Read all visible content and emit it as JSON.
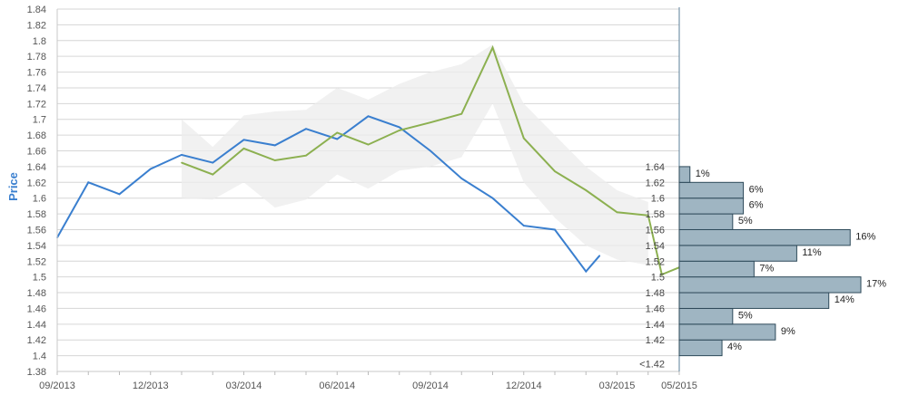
{
  "chart_data": {
    "type": "line",
    "ylabel": "Price",
    "ylim": [
      1.38,
      1.84
    ],
    "y_ticks": [
      "1.38",
      "1.4",
      "1.42",
      "1.44",
      "1.46",
      "1.48",
      "1.5",
      "1.52",
      "1.54",
      "1.56",
      "1.58",
      "1.6",
      "1.62",
      "1.64",
      "1.66",
      "1.68",
      "1.7",
      "1.72",
      "1.74",
      "1.76",
      "1.78",
      "1.8",
      "1.82",
      "1.84"
    ],
    "x_labels": [
      "09/2013",
      "12/2013",
      "03/2014",
      "06/2014",
      "09/2014",
      "12/2014",
      "03/2015",
      "05/2015"
    ],
    "grid": true,
    "colors": {
      "actual": "#3a7fcf",
      "forecast": "#8cb050",
      "band": "#ececec",
      "hist_bar": "#9fb5c2",
      "hist_edge": "#2e4a5a",
      "ylabel": "#3a7fcf"
    },
    "series": [
      {
        "role": "actual",
        "x": [
          "09/2013",
          "10/2013",
          "11/2013",
          "12/2013",
          "01/2014",
          "02/2014",
          "03/2014",
          "04/2014",
          "05/2014",
          "06/2014",
          "07/2014",
          "08/2014",
          "09/2014",
          "10/2014",
          "11/2014",
          "12/2014",
          "01/2015",
          "02/2015",
          "02/2015"
        ],
        "y": [
          1.55,
          1.62,
          1.605,
          1.637,
          1.655,
          1.645,
          1.674,
          1.667,
          1.688,
          1.675,
          1.704,
          1.69,
          1.66,
          1.625,
          1.6,
          1.565,
          1.56,
          1.507,
          1.527
        ]
      },
      {
        "role": "forecast",
        "x": [
          "01/2014",
          "02/2014",
          "03/2014",
          "04/2014",
          "05/2014",
          "06/2014",
          "07/2014",
          "08/2014",
          "09/2014",
          "10/2014",
          "11/2014",
          "12/2014",
          "01/2015",
          "02/2015",
          "03/2015",
          "04/2015",
          "04/2015",
          "05/2015"
        ],
        "y": [
          1.645,
          1.63,
          1.663,
          1.648,
          1.654,
          1.683,
          1.668,
          1.686,
          1.696,
          1.707,
          1.791,
          1.676,
          1.634,
          1.61,
          1.582,
          1.578,
          1.503,
          1.512
        ]
      }
    ],
    "band": {
      "x": [
        "01/2014",
        "02/2014",
        "03/2014",
        "04/2014",
        "05/2014",
        "06/2014",
        "07/2014",
        "08/2014",
        "09/2014",
        "10/2014",
        "11/2014",
        "12/2014",
        "01/2015",
        "02/2015",
        "03/2015",
        "04/2015"
      ],
      "upper": [
        1.7,
        1.665,
        1.705,
        1.71,
        1.712,
        1.74,
        1.725,
        1.745,
        1.76,
        1.77,
        1.795,
        1.72,
        1.68,
        1.64,
        1.61,
        1.595
      ],
      "lower": [
        1.6,
        1.598,
        1.62,
        1.588,
        1.598,
        1.63,
        1.612,
        1.635,
        1.64,
        1.652,
        1.72,
        1.62,
        1.575,
        1.54,
        1.522,
        1.515
      ]
    },
    "histogram": {
      "bins": [
        "<1.42",
        "1.42",
        "1.44",
        "1.46",
        "1.48",
        "1.5",
        "1.52",
        "1.54",
        "1.56",
        "1.58",
        "1.6",
        "1.62",
        "1.64"
      ],
      "percents": [
        4,
        9,
        5,
        14,
        17,
        7,
        11,
        16,
        5,
        6,
        6,
        1
      ],
      "labels": [
        "4%",
        "9%",
        "5%",
        "14%",
        "17%",
        "7%",
        "11%",
        "16%",
        "5%",
        "6%",
        "6%",
        "1%"
      ]
    }
  }
}
